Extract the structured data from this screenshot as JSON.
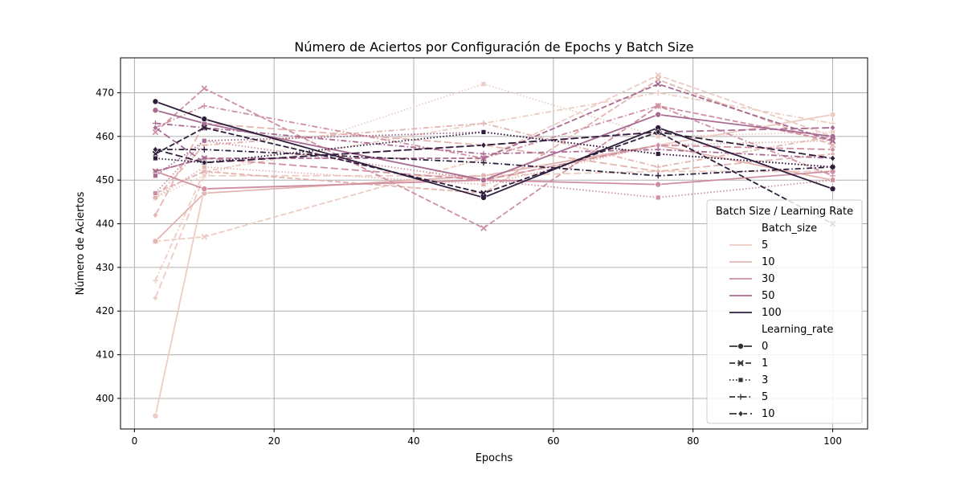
{
  "chart_data": {
    "type": "line",
    "title": "Número de Aciertos por Configuración de Epochs y Batch Size",
    "xlabel": "Epochs",
    "ylabel": "Número de Aciertos",
    "xlim": [
      -2,
      105
    ],
    "ylim": [
      393,
      478
    ],
    "xticks": [
      0,
      20,
      40,
      60,
      80,
      100
    ],
    "yticks": [
      400,
      410,
      420,
      430,
      440,
      450,
      460,
      470
    ],
    "grid": true,
    "x": [
      3,
      10,
      50,
      75,
      100
    ],
    "legend": {
      "title": "Batch Size / Learning Rate",
      "placement": "right",
      "hue_title": "Batch_size",
      "hue_entries": [
        {
          "label": "5",
          "color": "#ecccc3"
        },
        {
          "label": "10",
          "color": "#e2b5b0"
        },
        {
          "label": "30",
          "color": "#cf8fa0"
        },
        {
          "label": "50",
          "color": "#a86b91"
        },
        {
          "label": "100",
          "color": "#2e1e3b"
        }
      ],
      "style_title": "Learning_rate",
      "style_entries": [
        {
          "label": "0",
          "dash": "solid",
          "marker": "circle"
        },
        {
          "label": "1",
          "dash": "dashed",
          "marker": "x"
        },
        {
          "label": "3",
          "dash": "dotted",
          "marker": "square"
        },
        {
          "label": "5",
          "dash": "dashdot",
          "marker": "plus"
        },
        {
          "label": "10",
          "dash": "loosedash",
          "marker": "diamond"
        }
      ]
    },
    "series": [
      {
        "batch_size": "5",
        "learning_rate": "0",
        "color": "#ecccc3",
        "dash": "solid",
        "marker": "circle",
        "values": [
          396,
          448,
          450,
          458,
          465
        ]
      },
      {
        "batch_size": "5",
        "learning_rate": "1",
        "color": "#ecccc3",
        "dash": "dashed",
        "marker": "x",
        "values": [
          436,
          437,
          455,
          474,
          460
        ]
      },
      {
        "batch_size": "5",
        "learning_rate": "3",
        "color": "#ecccc3",
        "dash": "dotted",
        "marker": "square",
        "values": [
          446,
          451,
          472,
          460,
          461
        ]
      },
      {
        "batch_size": "5",
        "learning_rate": "5",
        "color": "#ecccc3",
        "dash": "dashdot",
        "marker": "plus",
        "values": [
          427,
          452,
          463,
          470,
          463
        ]
      },
      {
        "batch_size": "5",
        "learning_rate": "10",
        "color": "#ecccc3",
        "dash": "loosedash",
        "marker": "diamond",
        "values": [
          423,
          451,
          451,
          452,
          452
        ]
      },
      {
        "batch_size": "10",
        "learning_rate": "0",
        "color": "#e2b5b0",
        "dash": "solid",
        "marker": "circle",
        "values": [
          436,
          447,
          451,
          458,
          450
        ]
      },
      {
        "batch_size": "10",
        "learning_rate": "1",
        "color": "#e2b5b0",
        "dash": "dashed",
        "marker": "x",
        "values": [
          447,
          452,
          447,
          473,
          458
        ]
      },
      {
        "batch_size": "10",
        "learning_rate": "3",
        "color": "#e2b5b0",
        "dash": "dotted",
        "marker": "square",
        "values": [
          446,
          453,
          449,
          458,
          459
        ]
      },
      {
        "batch_size": "10",
        "learning_rate": "5",
        "color": "#e2b5b0",
        "dash": "dashdot",
        "marker": "plus",
        "values": [
          446,
          458,
          463,
          453,
          460
        ]
      },
      {
        "batch_size": "10",
        "learning_rate": "10",
        "color": "#e2b5b0",
        "dash": "loosedash",
        "marker": "diamond",
        "values": [
          442,
          463,
          458,
          452,
          456
        ]
      },
      {
        "batch_size": "30",
        "learning_rate": "0",
        "color": "#cf8fa0",
        "dash": "solid",
        "marker": "circle",
        "values": [
          452,
          448,
          450,
          449,
          452
        ]
      },
      {
        "batch_size": "30",
        "learning_rate": "1",
        "color": "#cf8fa0",
        "dash": "dashed",
        "marker": "x",
        "values": [
          461,
          471,
          439,
          467,
          459
        ]
      },
      {
        "batch_size": "30",
        "learning_rate": "3",
        "color": "#cf8fa0",
        "dash": "dotted",
        "marker": "square",
        "values": [
          447,
          459,
          450,
          446,
          450
        ]
      },
      {
        "batch_size": "30",
        "learning_rate": "5",
        "color": "#cf8fa0",
        "dash": "dashdot",
        "marker": "plus",
        "values": [
          462,
          467,
          455,
          467,
          451
        ]
      },
      {
        "batch_size": "30",
        "learning_rate": "10",
        "color": "#cf8fa0",
        "dash": "loosedash",
        "marker": "diamond",
        "values": [
          452,
          455,
          450,
          458,
          457
        ]
      },
      {
        "batch_size": "50",
        "learning_rate": "0",
        "color": "#a86b91",
        "dash": "solid",
        "marker": "circle",
        "values": [
          466,
          463,
          450,
          465,
          460
        ]
      },
      {
        "batch_size": "50",
        "learning_rate": "1",
        "color": "#a86b91",
        "dash": "dashed",
        "marker": "x",
        "values": [
          452,
          455,
          455,
          472,
          459
        ]
      },
      {
        "batch_size": "50",
        "learning_rate": "3",
        "color": "#a86b91",
        "dash": "dotted",
        "marker": "square",
        "values": [
          451,
          459,
          461,
          456,
          453
        ]
      },
      {
        "batch_size": "50",
        "learning_rate": "5",
        "color": "#a86b91",
        "dash": "dashdot",
        "marker": "plus",
        "values": [
          463,
          462,
          456,
          457,
          455
        ]
      },
      {
        "batch_size": "50",
        "learning_rate": "10",
        "color": "#a86b91",
        "dash": "loosedash",
        "marker": "diamond",
        "values": [
          462,
          454,
          458,
          461,
          462
        ]
      },
      {
        "batch_size": "100",
        "learning_rate": "0",
        "color": "#2e1e3b",
        "dash": "solid",
        "marker": "circle",
        "values": [
          468,
          464,
          446,
          462,
          448
        ]
      },
      {
        "batch_size": "100",
        "learning_rate": "1",
        "color": "#2e1e3b",
        "dash": "dashed",
        "marker": "x",
        "values": [
          456,
          462,
          447,
          461,
          440
        ]
      },
      {
        "batch_size": "100",
        "learning_rate": "3",
        "color": "#2e1e3b",
        "dash": "dotted",
        "marker": "square",
        "values": [
          455,
          454,
          461,
          456,
          453
        ]
      },
      {
        "batch_size": "100",
        "learning_rate": "5",
        "color": "#2e1e3b",
        "dash": "dashdot",
        "marker": "plus",
        "values": [
          457,
          457,
          454,
          451,
          453
        ]
      },
      {
        "batch_size": "100",
        "learning_rate": "10",
        "color": "#2e1e3b",
        "dash": "loosedash",
        "marker": "diamond",
        "values": [
          457,
          454,
          458,
          461,
          455
        ]
      }
    ]
  }
}
